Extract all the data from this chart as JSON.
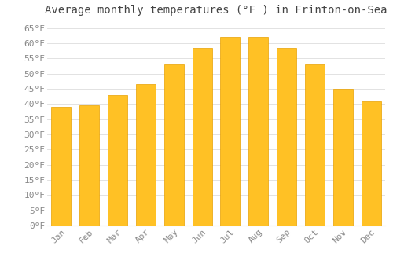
{
  "title": "Average monthly temperatures (°F ) in Frinton-on-Sea",
  "months": [
    "Jan",
    "Feb",
    "Mar",
    "Apr",
    "May",
    "Jun",
    "Jul",
    "Aug",
    "Sep",
    "Oct",
    "Nov",
    "Dec"
  ],
  "values": [
    39,
    39.5,
    43,
    46.5,
    53,
    58.5,
    62,
    62,
    58.5,
    53,
    45,
    41
  ],
  "bar_color_face": "#FFC125",
  "bar_color_edge": "#E8A000",
  "background_color": "#FFFFFF",
  "grid_color": "#DDDDDD",
  "ytick_labels": [
    "0°F",
    "5°F",
    "10°F",
    "15°F",
    "20°F",
    "25°F",
    "30°F",
    "35°F",
    "40°F",
    "45°F",
    "50°F",
    "55°F",
    "60°F",
    "65°F"
  ],
  "ytick_values": [
    0,
    5,
    10,
    15,
    20,
    25,
    30,
    35,
    40,
    45,
    50,
    55,
    60,
    65
  ],
  "ylim": [
    0,
    67
  ],
  "title_fontsize": 10,
  "tick_fontsize": 8,
  "tick_font_color": "#888888",
  "title_font_color": "#444444",
  "bar_width": 0.7
}
